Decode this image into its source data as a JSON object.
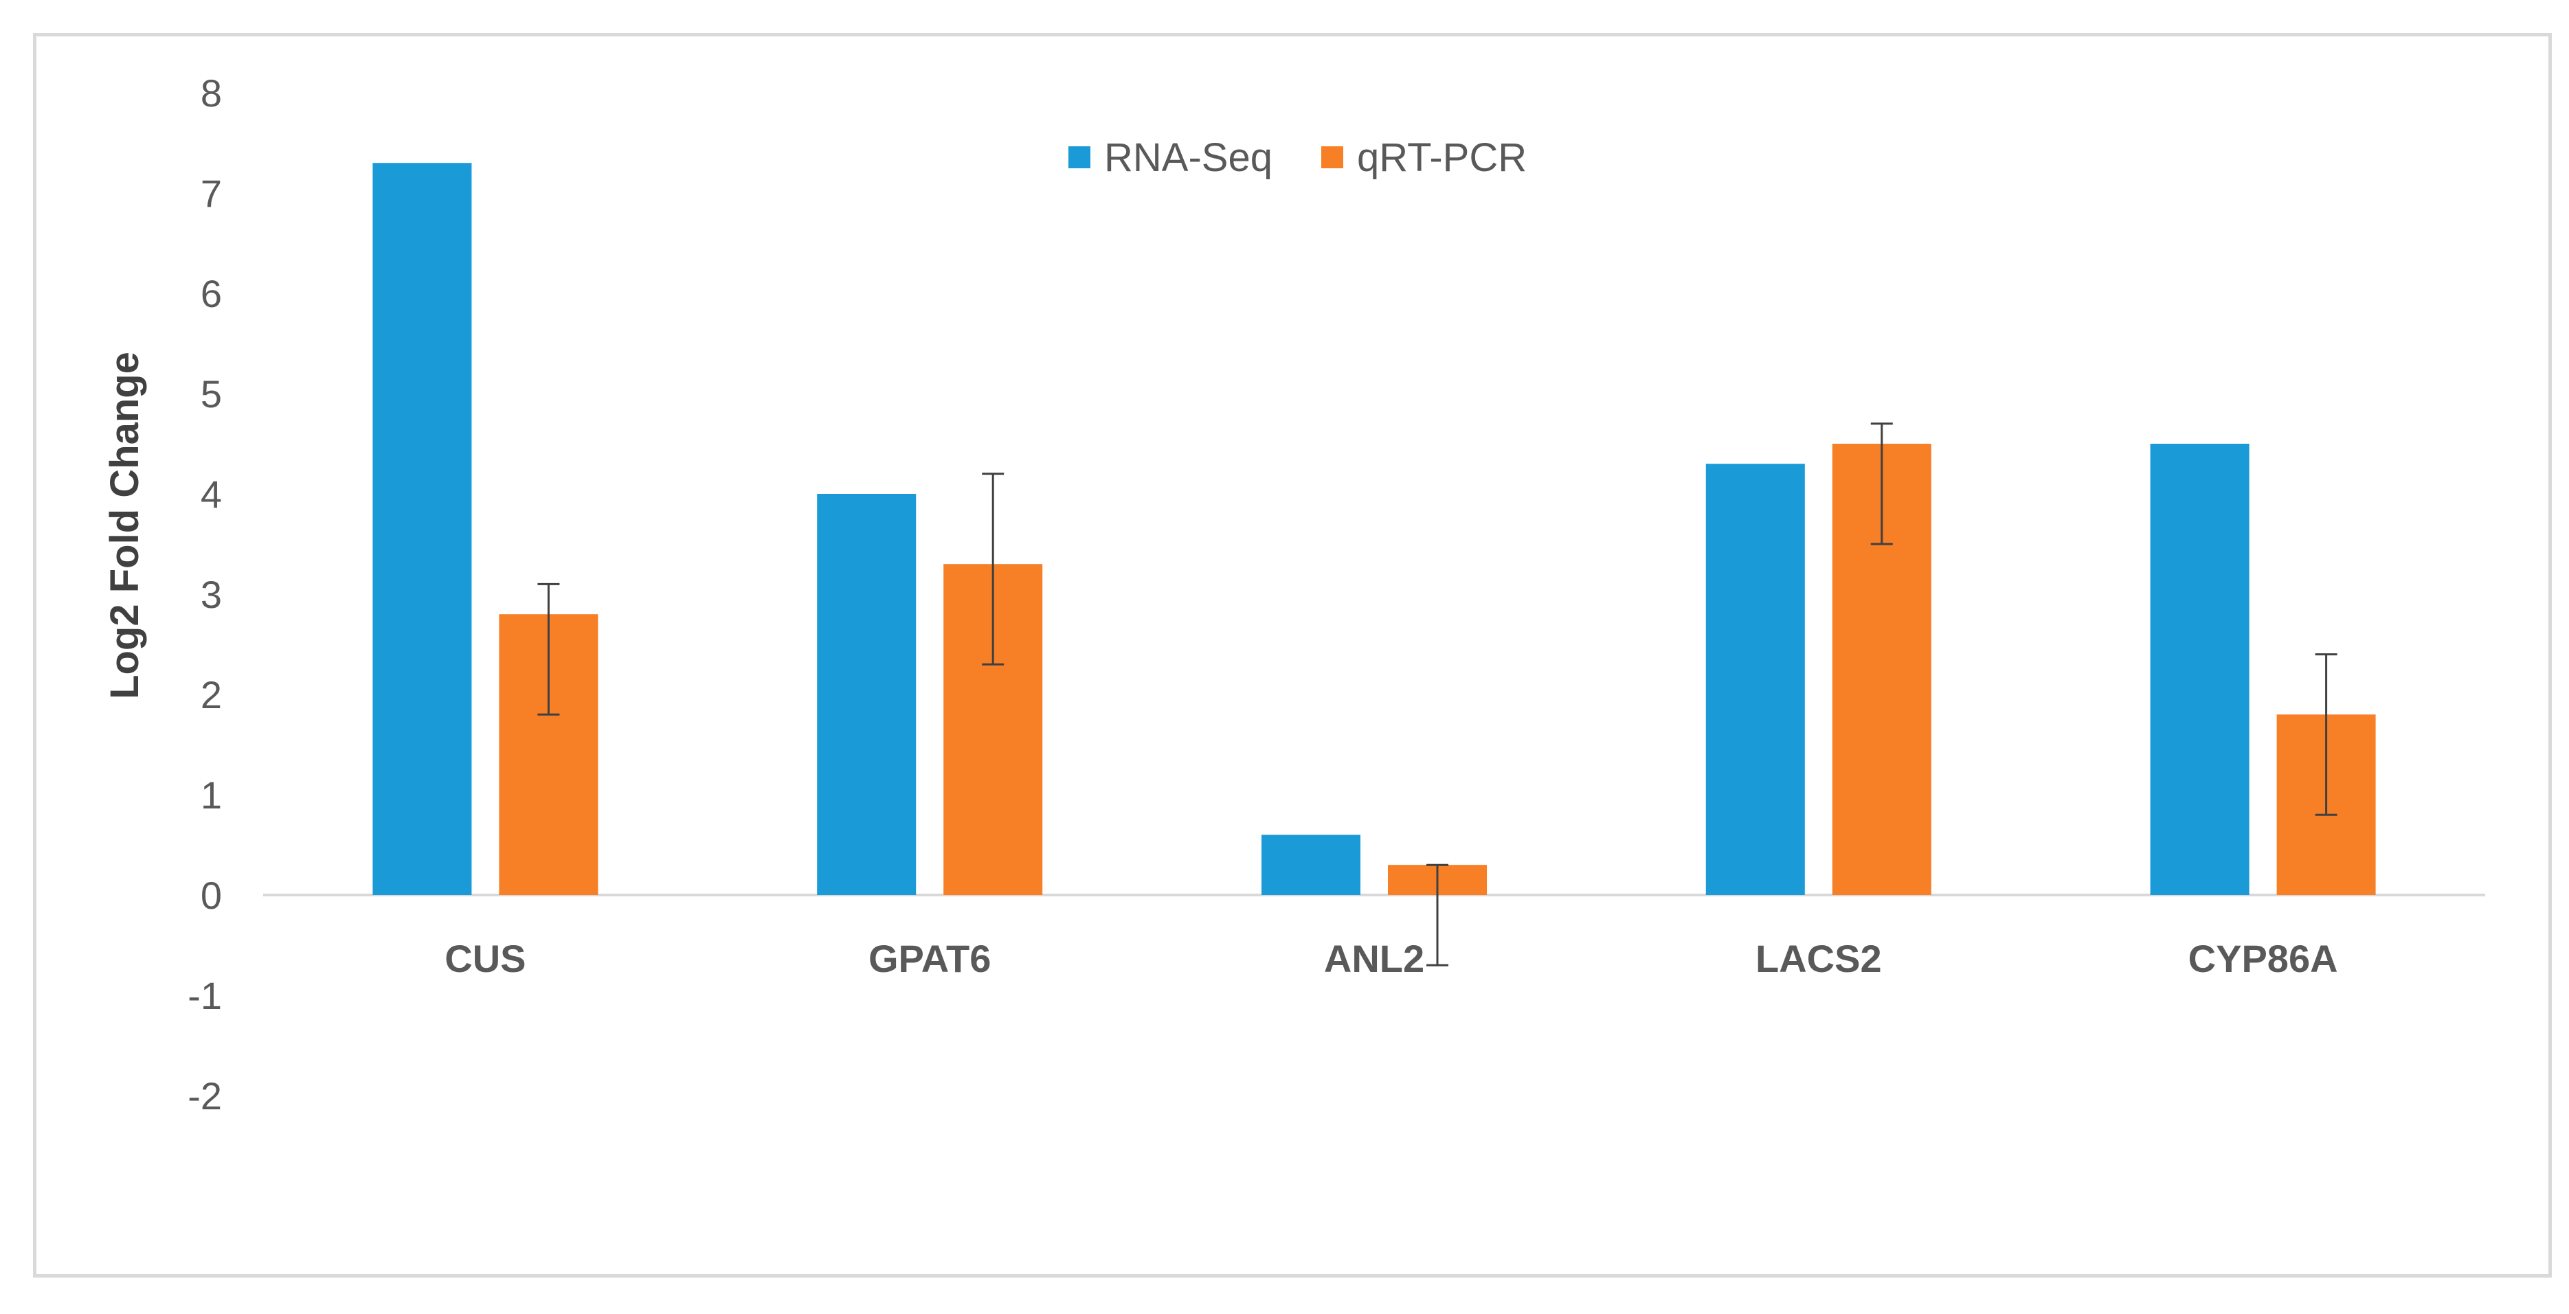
{
  "chart_data": {
    "type": "bar",
    "title": "",
    "xlabel": "",
    "ylabel": "Log2 Fold Change",
    "ylim": [
      -2,
      8
    ],
    "yticks": [
      "8",
      "7",
      "6",
      "5",
      "4",
      "3",
      "2",
      "1",
      "0",
      "-1",
      "-2"
    ],
    "categories": [
      "CUS",
      "GPAT6",
      "ANL2",
      "LACS2",
      "CYP86A"
    ],
    "series": [
      {
        "name": "RNA-Seq",
        "color": "#1a9ad6",
        "values": [
          7.3,
          4.0,
          0.6,
          4.3,
          4.5
        ]
      },
      {
        "name": "qRT-PCR",
        "color": "#f77f26",
        "values": [
          2.8,
          3.3,
          0.3,
          4.5,
          1.8
        ],
        "error_low": [
          1.8,
          2.3,
          -0.7,
          3.5,
          0.8
        ],
        "error_high": [
          3.1,
          4.2,
          0.3,
          4.7,
          2.4
        ]
      }
    ],
    "legend": "top-center",
    "grid": false
  }
}
